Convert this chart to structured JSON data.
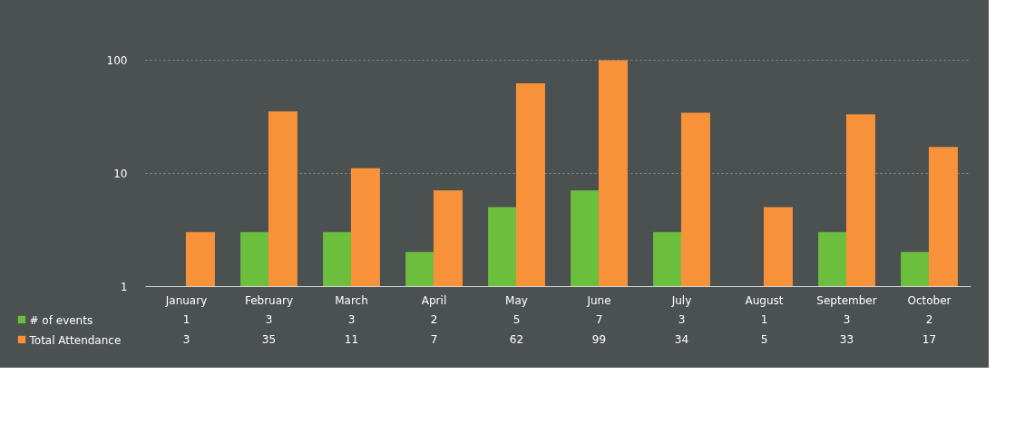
{
  "chart_data": {
    "type": "bar",
    "categories": [
      "January",
      "February",
      "March",
      "April",
      "May",
      "June",
      "July",
      "August",
      "September",
      "October"
    ],
    "series": [
      {
        "name": "# of events",
        "color": "#6cbf3c",
        "values": [
          1,
          3,
          3,
          2,
          5,
          7,
          3,
          1,
          3,
          2
        ]
      },
      {
        "name": "Total Attendance",
        "color": "#f7923a",
        "values": [
          3,
          35,
          11,
          7,
          62,
          99,
          34,
          5,
          33,
          17
        ]
      }
    ],
    "log": "y",
    "ylim": [
      1,
      100
    ],
    "yticks": [
      1,
      10,
      100
    ],
    "grid": "y",
    "legend": "bottom left",
    "data_labels": true
  }
}
